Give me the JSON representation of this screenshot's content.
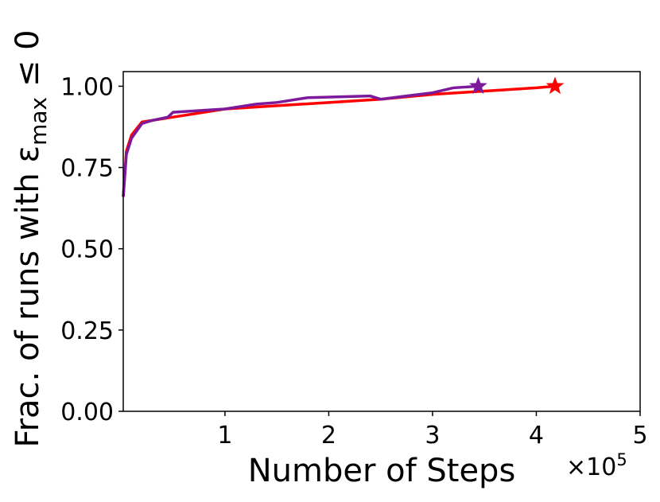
{
  "chart_data": {
    "type": "line",
    "xlabel": "Number of Steps",
    "x_offset_label": "×10",
    "x_offset_exp": "5",
    "ylabel": "Frac. of runs with ε",
    "ylabel_sub": "max",
    "ylabel_end": " ≤ 0",
    "xlim": [
      0.02,
      5
    ],
    "xticks": [
      1,
      2,
      3,
      4,
      5
    ],
    "ylim": [
      0,
      1.045
    ],
    "yticks": [
      {
        "value": 0,
        "label": "0.00"
      },
      {
        "value": 0.25,
        "label": "0.25"
      },
      {
        "value": 0.5,
        "label": "0.50"
      },
      {
        "value": 0.75,
        "label": "0.75"
      },
      {
        "value": 1,
        "label": "1.00"
      }
    ],
    "end_marker": "star",
    "series": [
      {
        "color": "#ff0000",
        "x": [
          0.02,
          0.05,
          0.1,
          0.2,
          0.5,
          1,
          1.5,
          2,
          2.5,
          3,
          3.5,
          4,
          4.18
        ],
        "values": [
          0.66,
          0.8,
          0.85,
          0.89,
          0.905,
          0.93,
          0.94,
          0.95,
          0.96,
          0.975,
          0.985,
          0.995,
          1.0
        ]
      },
      {
        "color": "#7d1a9c",
        "x": [
          0.02,
          0.05,
          0.1,
          0.2,
          0.3,
          0.45,
          0.5,
          1,
          1.3,
          1.5,
          1.8,
          2.4,
          2.5,
          3,
          3.2,
          3.44
        ],
        "values": [
          0.66,
          0.79,
          0.84,
          0.885,
          0.895,
          0.905,
          0.92,
          0.93,
          0.945,
          0.95,
          0.965,
          0.97,
          0.96,
          0.98,
          0.995,
          1.0
        ]
      }
    ]
  }
}
